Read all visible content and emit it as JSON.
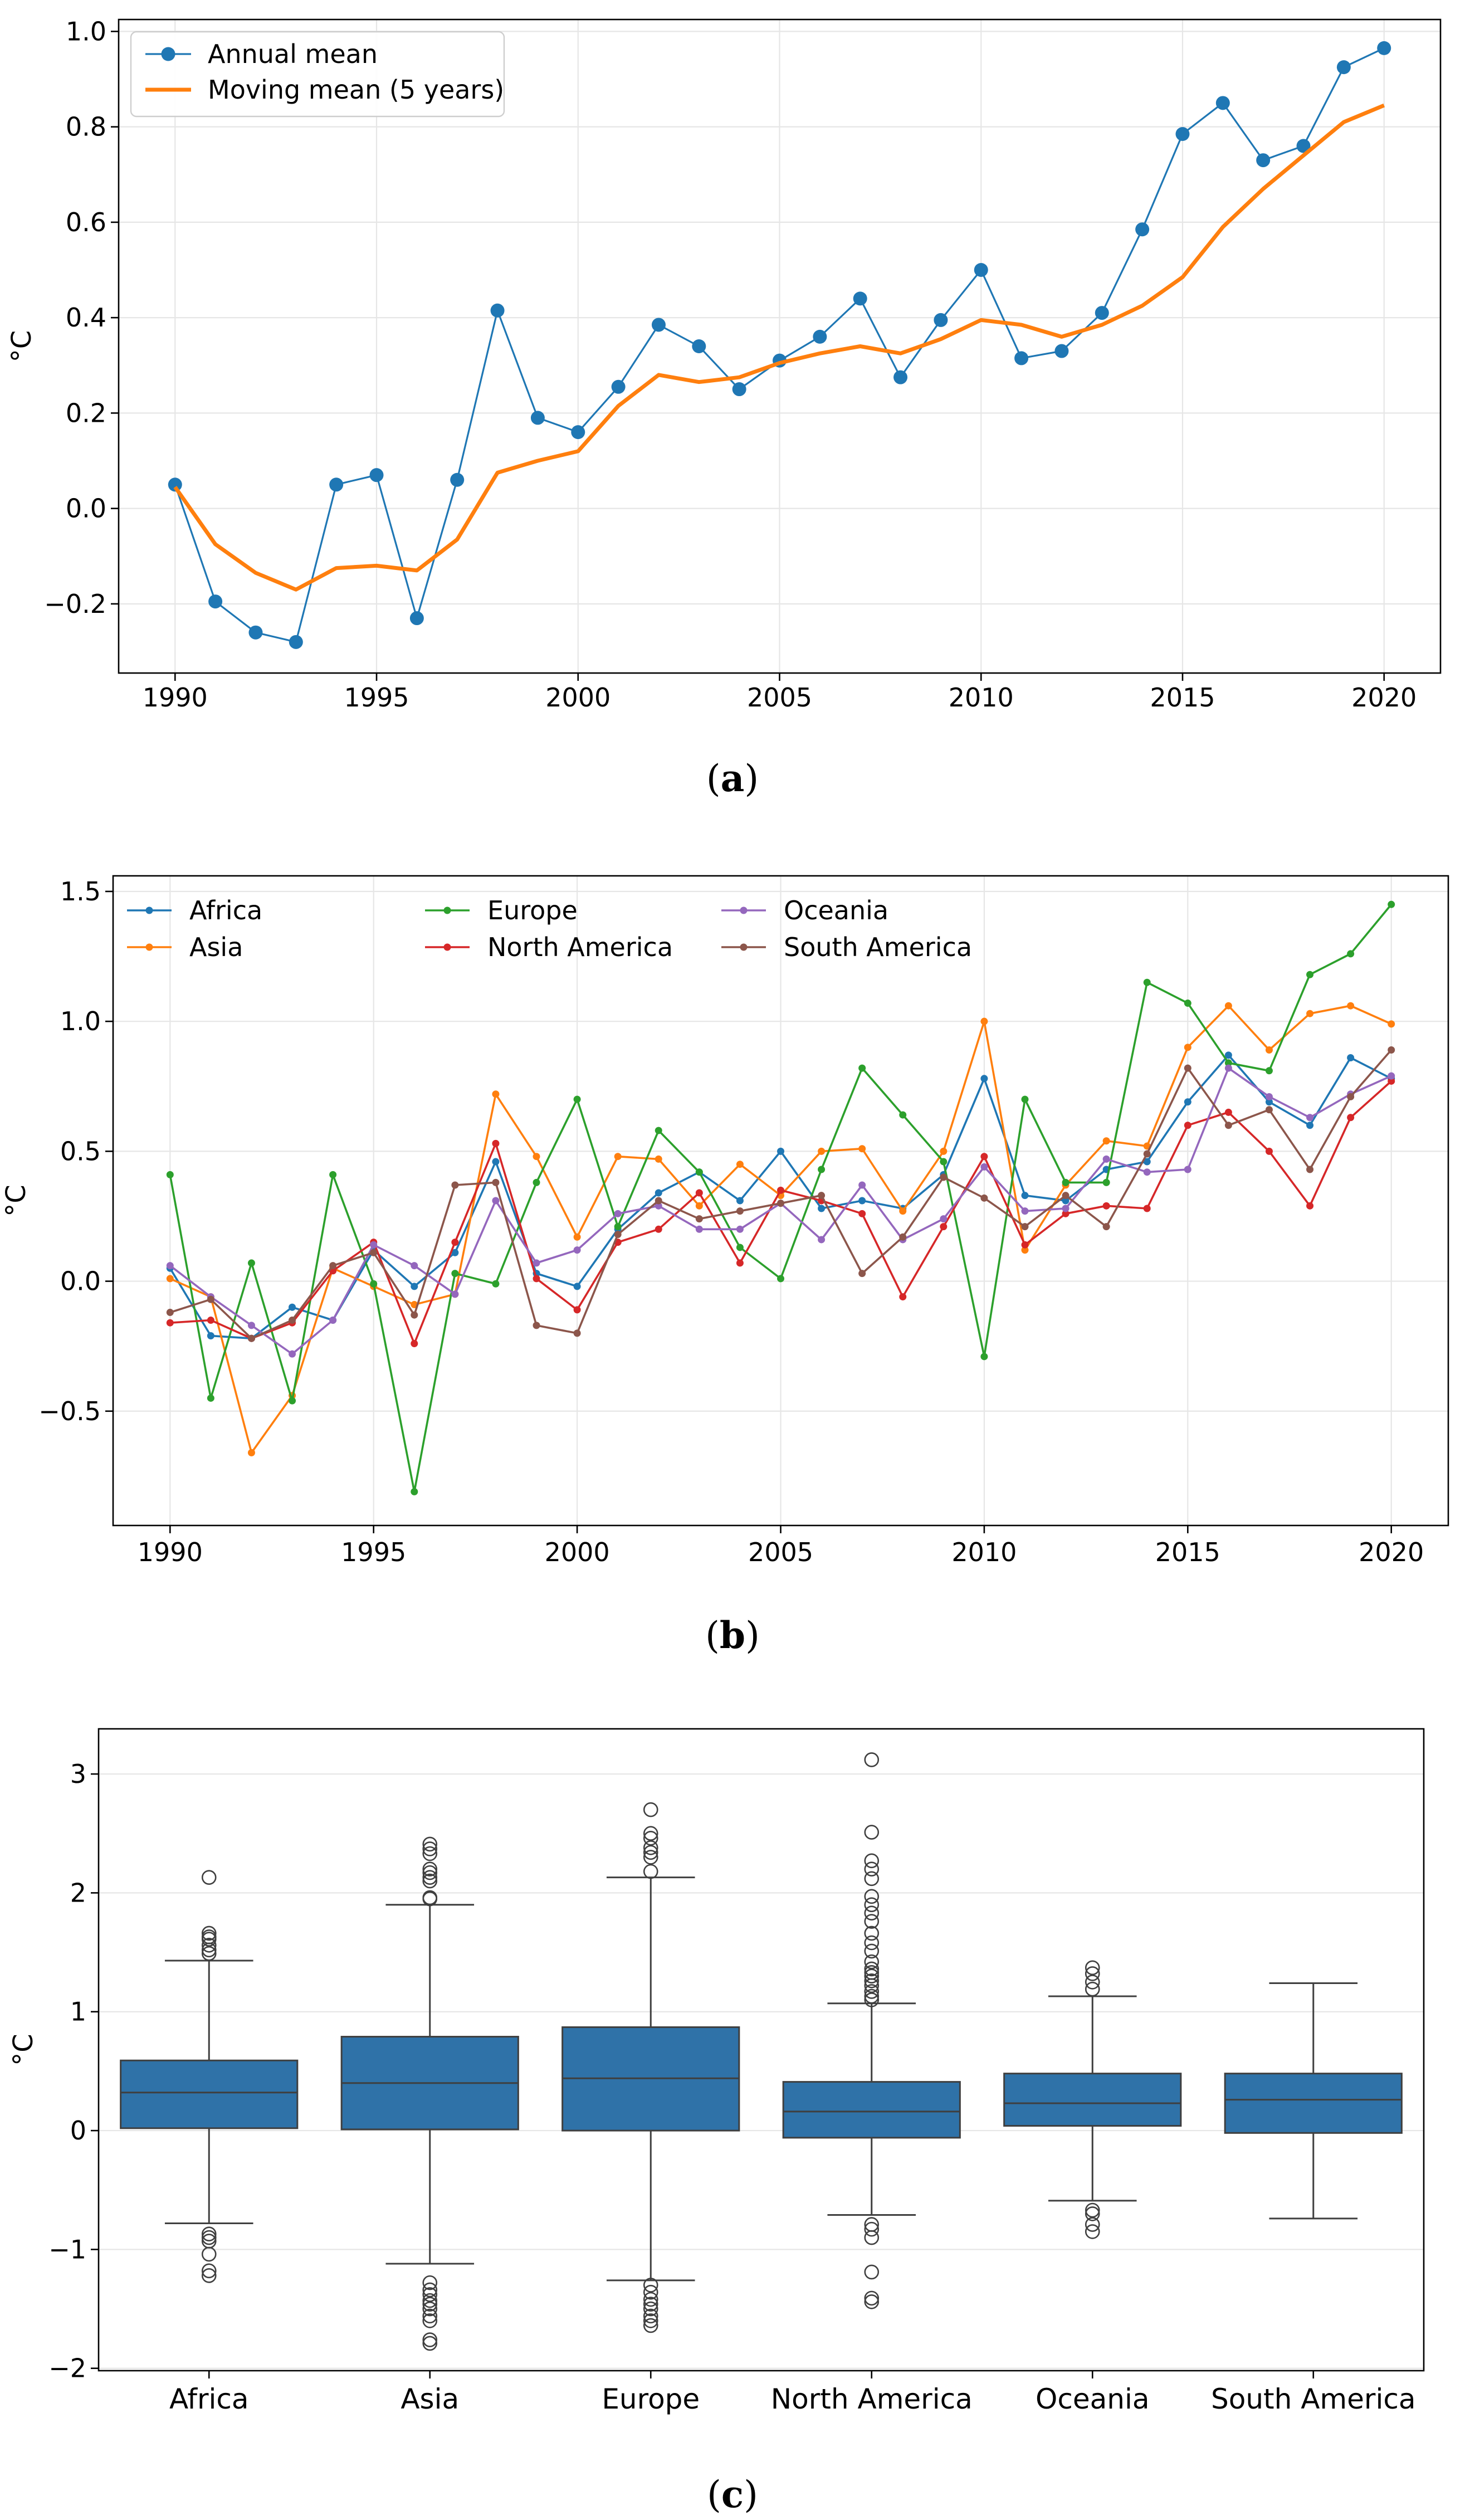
{
  "chart_data": [
    {
      "id": "a",
      "type": "line",
      "caption_letter": "a",
      "ylabel": "°C",
      "xlim": [
        1988.6,
        2021.4
      ],
      "ylim": [
        -0.345,
        1.025
      ],
      "xticks": [
        1990,
        1995,
        2000,
        2005,
        2010,
        2015,
        2020
      ],
      "xtick_labels": [
        "1990",
        "1995",
        "2000",
        "2005",
        "2010",
        "2015",
        "2020"
      ],
      "yticks": [
        -0.2,
        0.0,
        0.2,
        0.4,
        0.6,
        0.8,
        1.0
      ],
      "ytick_labels": [
        "−0.2",
        "0.0",
        "0.2",
        "0.4",
        "0.6",
        "0.8",
        "1.0"
      ],
      "grid": true,
      "legend_position": "top-left",
      "x": [
        1990,
        1991,
        1992,
        1993,
        1994,
        1995,
        1996,
        1997,
        1998,
        1999,
        2000,
        2001,
        2002,
        2003,
        2004,
        2005,
        2006,
        2007,
        2008,
        2009,
        2010,
        2011,
        2012,
        2013,
        2014,
        2015,
        2016,
        2017,
        2018,
        2019,
        2020
      ],
      "series": [
        {
          "name": "Annual mean",
          "color": "#1f77b4",
          "marker": "circle",
          "values": [
            0.05,
            -0.195,
            -0.26,
            -0.28,
            0.05,
            0.07,
            -0.23,
            0.06,
            0.415,
            0.19,
            0.16,
            0.255,
            0.385,
            0.34,
            0.25,
            0.31,
            0.36,
            0.44,
            0.275,
            0.395,
            0.5,
            0.315,
            0.33,
            0.41,
            0.585,
            0.785,
            0.85,
            0.73,
            0.76,
            0.925,
            0.965
          ]
        },
        {
          "name": "Moving mean (5 years)",
          "color": "#ff7f0e",
          "marker": "none",
          "values": [
            0.045,
            -0.075,
            -0.135,
            -0.17,
            -0.125,
            -0.12,
            -0.13,
            -0.065,
            0.075,
            0.1,
            0.12,
            0.215,
            0.28,
            0.265,
            0.275,
            0.305,
            0.325,
            0.34,
            0.325,
            0.355,
            0.395,
            0.385,
            0.36,
            0.385,
            0.425,
            0.485,
            0.59,
            0.67,
            0.74,
            0.81,
            0.845
          ]
        }
      ]
    },
    {
      "id": "b",
      "type": "line",
      "caption_letter": "b",
      "ylabel": "°C",
      "xlim": [
        1988.6,
        2021.4
      ],
      "ylim": [
        -0.94,
        1.56
      ],
      "xticks": [
        1990,
        1995,
        2000,
        2005,
        2010,
        2015,
        2020
      ],
      "xtick_labels": [
        "1990",
        "1995",
        "2000",
        "2005",
        "2010",
        "2015",
        "2020"
      ],
      "yticks": [
        -0.5,
        0.0,
        0.5,
        1.0,
        1.5
      ],
      "ytick_labels": [
        "−0.5",
        "0.0",
        "0.5",
        "1.0",
        "1.5"
      ],
      "grid": true,
      "legend_position": "top-left",
      "x": [
        1990,
        1991,
        1992,
        1993,
        1994,
        1995,
        1996,
        1997,
        1998,
        1999,
        2000,
        2001,
        2002,
        2003,
        2004,
        2005,
        2006,
        2007,
        2008,
        2009,
        2010,
        2011,
        2012,
        2013,
        2014,
        2015,
        2016,
        2017,
        2018,
        2019,
        2020
      ],
      "series": [
        {
          "name": "Africa",
          "color": "#1f77b4",
          "marker": "dot",
          "values": [
            0.05,
            -0.21,
            -0.22,
            -0.1,
            -0.15,
            0.12,
            -0.02,
            0.11,
            0.46,
            0.03,
            -0.02,
            0.2,
            0.34,
            0.42,
            0.31,
            0.5,
            0.28,
            0.31,
            0.28,
            0.41,
            0.78,
            0.33,
            0.31,
            0.43,
            0.46,
            0.69,
            0.87,
            0.69,
            0.6,
            0.86,
            0.78
          ]
        },
        {
          "name": "Asia",
          "color": "#ff7f0e",
          "marker": "dot",
          "values": [
            0.01,
            -0.06,
            -0.66,
            -0.44,
            0.05,
            -0.02,
            -0.09,
            -0.05,
            0.72,
            0.48,
            0.17,
            0.48,
            0.47,
            0.29,
            0.45,
            0.33,
            0.5,
            0.51,
            0.27,
            0.5,
            1.0,
            0.12,
            0.37,
            0.54,
            0.52,
            0.9,
            1.06,
            0.89,
            1.03,
            1.06,
            0.99
          ]
        },
        {
          "name": "Europe",
          "color": "#2ca02c",
          "marker": "dot",
          "values": [
            0.41,
            -0.45,
            0.07,
            -0.46,
            0.41,
            -0.01,
            -0.81,
            0.03,
            -0.01,
            0.38,
            0.7,
            0.21,
            0.58,
            0.42,
            0.13,
            0.01,
            0.43,
            0.82,
            0.64,
            0.46,
            -0.29,
            0.7,
            0.38,
            0.38,
            1.15,
            1.07,
            0.84,
            0.81,
            1.18,
            1.26,
            1.45
          ]
        },
        {
          "name": "North America",
          "color": "#d62728",
          "marker": "dot",
          "values": [
            -0.16,
            -0.15,
            -0.22,
            -0.16,
            0.04,
            0.15,
            -0.24,
            0.15,
            0.53,
            0.01,
            -0.11,
            0.15,
            0.2,
            0.34,
            0.07,
            0.35,
            0.31,
            0.26,
            -0.06,
            0.21,
            0.48,
            0.14,
            0.26,
            0.29,
            0.28,
            0.6,
            0.65,
            0.5,
            0.29,
            0.63,
            0.77
          ]
        },
        {
          "name": "Oceania",
          "color": "#9467bd",
          "marker": "dot",
          "values": [
            0.06,
            -0.06,
            -0.17,
            -0.28,
            -0.15,
            0.14,
            0.06,
            -0.05,
            0.31,
            0.07,
            0.12,
            0.26,
            0.29,
            0.2,
            0.2,
            0.3,
            0.16,
            0.37,
            0.16,
            0.24,
            0.44,
            0.27,
            0.28,
            0.47,
            0.42,
            0.43,
            0.82,
            0.71,
            0.63,
            0.72,
            0.79
          ]
        },
        {
          "name": "South America",
          "color": "#8c564b",
          "marker": "dot",
          "values": [
            -0.12,
            -0.07,
            -0.22,
            -0.15,
            0.06,
            0.11,
            -0.13,
            0.37,
            0.38,
            -0.17,
            -0.2,
            0.18,
            0.31,
            0.24,
            0.27,
            0.3,
            0.33,
            0.03,
            0.17,
            0.4,
            0.32,
            0.21,
            0.33,
            0.21,
            0.49,
            0.82,
            0.6,
            0.66,
            0.43,
            0.71,
            0.89
          ]
        }
      ]
    },
    {
      "id": "c",
      "type": "box",
      "caption_letter": "c",
      "ylabel": "°C",
      "ylim": [
        -2.02,
        3.38
      ],
      "yticks": [
        -2,
        -1,
        0,
        1,
        2,
        3
      ],
      "ytick_labels": [
        "−2",
        "−1",
        "0",
        "1",
        "2",
        "3"
      ],
      "grid": true,
      "box_color": "#2f72a8",
      "categories": [
        "Africa",
        "Asia",
        "Europe",
        "North America",
        "Oceania",
        "South America"
      ],
      "boxes": [
        {
          "min": -0.78,
          "q1": 0.02,
          "median": 0.32,
          "q3": 0.59,
          "max": 1.43,
          "outliers": [
            2.13,
            1.66,
            1.63,
            1.61,
            1.56,
            1.52,
            1.49,
            -0.87,
            -0.9,
            -0.93,
            -1.04,
            -1.18,
            -1.22
          ]
        },
        {
          "min": -1.12,
          "q1": 0.01,
          "median": 0.4,
          "q3": 0.79,
          "max": 1.9,
          "outliers": [
            2.41,
            2.37,
            2.33,
            2.2,
            2.17,
            2.13,
            2.1,
            1.96,
            1.95,
            -1.28,
            -1.34,
            -1.38,
            -1.43,
            -1.46,
            -1.5,
            -1.56,
            -1.6,
            -1.76,
            -1.79
          ]
        },
        {
          "min": -1.26,
          "q1": 0.0,
          "median": 0.44,
          "q3": 0.87,
          "max": 2.13,
          "outliers": [
            2.7,
            2.5,
            2.46,
            2.38,
            2.34,
            2.3,
            2.18,
            -1.3,
            -1.36,
            -1.42,
            -1.46,
            -1.5,
            -1.56,
            -1.6,
            -1.64
          ]
        },
        {
          "min": -0.71,
          "q1": -0.06,
          "median": 0.16,
          "q3": 0.41,
          "max": 1.07,
          "outliers": [
            3.12,
            2.51,
            2.27,
            2.2,
            2.12,
            1.97,
            1.9,
            1.83,
            1.76,
            1.66,
            1.58,
            1.51,
            1.42,
            1.36,
            1.33,
            1.3,
            1.26,
            1.22,
            1.17,
            1.13,
            1.1,
            -0.79,
            -0.83,
            -0.9,
            -1.19,
            -1.41,
            -1.44
          ]
        },
        {
          "min": -0.59,
          "q1": 0.04,
          "median": 0.23,
          "q3": 0.48,
          "max": 1.13,
          "outliers": [
            1.37,
            1.32,
            1.25,
            1.19,
            -0.67,
            -0.7,
            -0.79,
            -0.85
          ]
        },
        {
          "min": -0.74,
          "q1": -0.02,
          "median": 0.26,
          "q3": 0.48,
          "max": 1.24,
          "outliers": []
        }
      ]
    }
  ]
}
